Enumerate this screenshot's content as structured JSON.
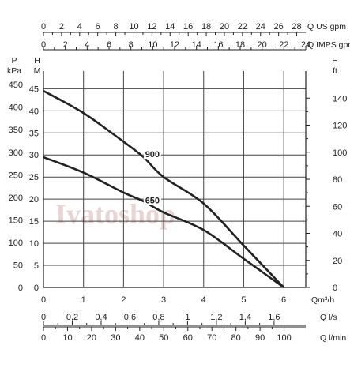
{
  "chart_data": {
    "type": "line",
    "watermark": "Ivatoshop",
    "colors": {
      "curve": "#222222",
      "grid": "#444444",
      "axis": "#222222",
      "watermark": "#e9d3d3"
    },
    "grid": true,
    "top_axes": [
      {
        "unit": "Q US gpm",
        "ticks": [
          "0",
          "2",
          "4",
          "6",
          "8",
          "10",
          "12",
          "14",
          "16",
          "18",
          "20",
          "22",
          "24",
          "26",
          "28"
        ],
        "max": 29
      },
      {
        "unit": "Q IMPS gpm",
        "ticks": [
          "0",
          "2",
          "4",
          "6",
          "8",
          "10",
          "12",
          "14",
          "16",
          "18",
          "20",
          "22",
          "24"
        ],
        "max": 24
      }
    ],
    "left_axes": [
      {
        "title": [
          "P",
          "kPa"
        ],
        "ticks": [
          "0",
          "50",
          "100",
          "150",
          "200",
          "250",
          "300",
          "350",
          "400",
          "450"
        ],
        "range": [
          0,
          480
        ]
      },
      {
        "title": [
          "H",
          "M"
        ],
        "ticks": [
          "0",
          "5",
          "10",
          "15",
          "20",
          "25",
          "30",
          "35",
          "40",
          "45"
        ],
        "range": [
          0,
          49
        ]
      }
    ],
    "right_axis": {
      "title": [
        "H",
        "ft"
      ],
      "ticks": [
        "0",
        "20",
        "40",
        "60",
        "80",
        "100",
        "120",
        "140"
      ],
      "range": [
        0,
        160
      ]
    },
    "bottom_axes": [
      {
        "unit": "Qm³/h",
        "ticks": [
          "0",
          "1",
          "2",
          "3",
          "4",
          "5",
          "6"
        ],
        "range": [
          0,
          6.55
        ]
      },
      {
        "unit": "Q l/s",
        "ticks": [
          "0",
          "0,2",
          "0,4",
          "0,6",
          "0,8",
          "1",
          "1,2",
          "1,4",
          "1,6"
        ],
        "range": [
          0,
          1.82
        ]
      },
      {
        "unit": "Q l/min",
        "ticks": [
          "0",
          "10",
          "20",
          "30",
          "40",
          "50",
          "60",
          "70",
          "80",
          "90",
          "100"
        ],
        "range": [
          0,
          109
        ]
      }
    ],
    "x_range": [
      0,
      6.55
    ],
    "y_range": [
      0,
      49
    ],
    "series": [
      {
        "name": "900",
        "x": [
          0,
          1,
          2,
          2.5,
          3,
          4,
          5,
          6
        ],
        "y": [
          44.5,
          39.5,
          33,
          29.5,
          25,
          19,
          9.5,
          0
        ]
      },
      {
        "name": "650",
        "x": [
          0,
          1,
          2,
          2.5,
          3,
          4,
          5,
          6
        ],
        "y": [
          29.5,
          26,
          21.5,
          19.5,
          17,
          13,
          6.5,
          0
        ]
      }
    ],
    "series_label_at": [
      {
        "x": 2.72,
        "y": 30.2
      },
      {
        "x": 2.72,
        "y": 19.8
      }
    ]
  }
}
